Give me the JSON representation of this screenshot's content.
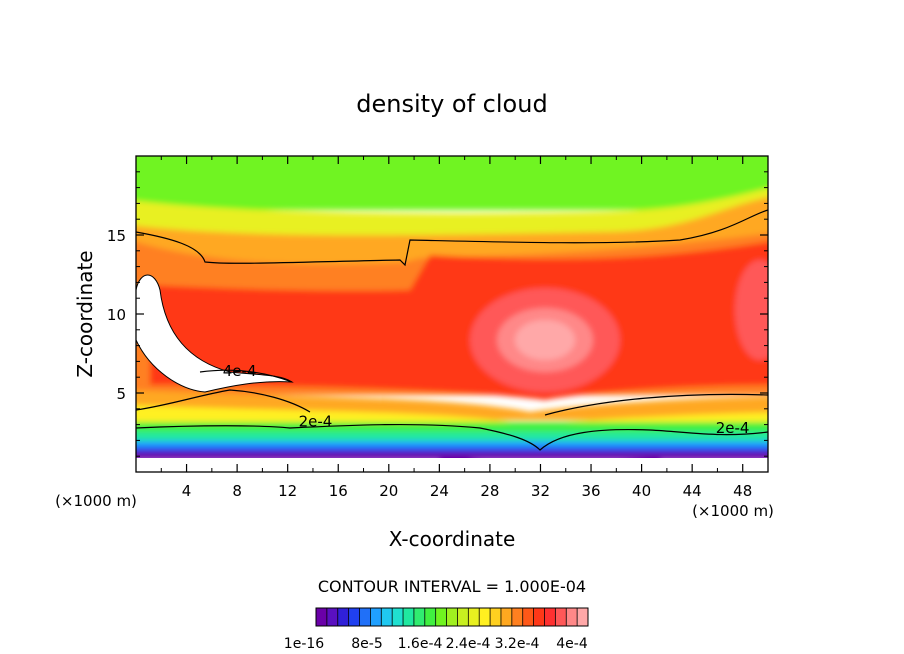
{
  "chart_data": {
    "type": "heatmap",
    "title": "density of cloud",
    "xlabel": "X-coordinate",
    "ylabel": "Z-coordinate",
    "x_unit": "(×1000 m)",
    "x_unit_right": "(×1000 m)",
    "xlim": [
      0,
      50
    ],
    "ylim": [
      0,
      20
    ],
    "x_ticks": [
      4,
      8,
      12,
      16,
      20,
      24,
      28,
      32,
      36,
      40,
      44,
      48
    ],
    "y_ticks": [
      5,
      10,
      15
    ],
    "contour_interval_text": "CONTOUR INTERVAL = 1.000E-04",
    "contour_labels": [
      {
        "text": "4e-4",
        "x": 8.2,
        "z": 6.2
      },
      {
        "text": "2e-4",
        "x": 14.2,
        "z": 3.0
      },
      {
        "text": "2e-4",
        "x": 47.2,
        "z": 2.6
      }
    ],
    "colorbar": {
      "colors": [
        "#6a00a8",
        "#5a10c0",
        "#3020d8",
        "#2040f0",
        "#2070f8",
        "#20a0ff",
        "#20c8f0",
        "#20e0d0",
        "#20e8a0",
        "#30ec70",
        "#40f040",
        "#70f420",
        "#a0f020",
        "#c8f020",
        "#e8f020",
        "#fff020",
        "#ffd020",
        "#ffa820",
        "#ff8020",
        "#ff5818",
        "#ff3818",
        "#ff3030",
        "#ff5858",
        "#ff8888",
        "#ffa8a8"
      ],
      "tick_labels": [
        "1e-16",
        "8e-5",
        "1.6e-4",
        "2.4e-4",
        "3.2e-4",
        "4e-4"
      ]
    }
  }
}
